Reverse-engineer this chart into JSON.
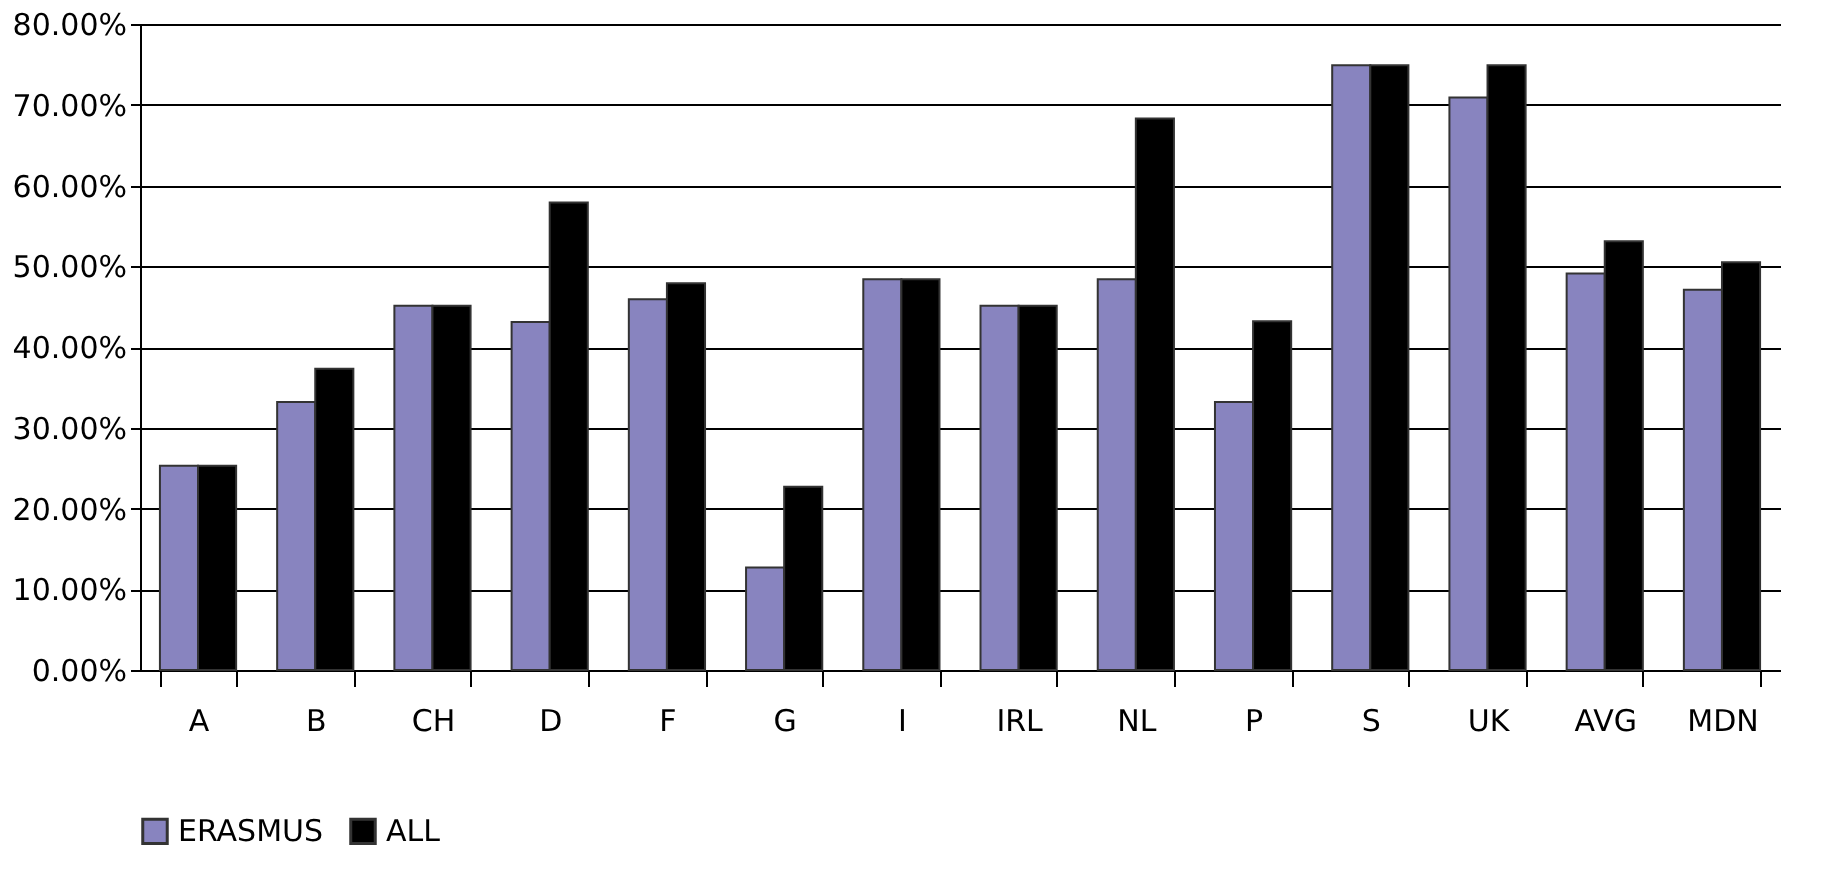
{
  "chart_data": {
    "type": "bar",
    "categories": [
      "A",
      "B",
      "CH",
      "D",
      "F",
      "G",
      "I",
      "IRL",
      "NL",
      "P",
      "S",
      "UK",
      "AVG",
      "MDN"
    ],
    "series": [
      {
        "name": "ERASMUS",
        "color": "#8884bf",
        "values": [
          25.3,
          33.2,
          45.1,
          43.1,
          45.9,
          12.7,
          48.4,
          45.1,
          48.4,
          33.2,
          74.9,
          70.9,
          49.1,
          47.1
        ]
      },
      {
        "name": "ALL",
        "color": "#000000",
        "values": [
          25.3,
          37.3,
          45.1,
          57.9,
          47.9,
          22.7,
          48.4,
          45.1,
          68.3,
          43.2,
          74.9,
          74.9,
          53.1,
          50.5
        ]
      }
    ],
    "ylim": [
      0,
      80
    ],
    "yticks": [
      {
        "value": 0,
        "label": "0.00%"
      },
      {
        "value": 10,
        "label": "10.00%"
      },
      {
        "value": 20,
        "label": "20.00%"
      },
      {
        "value": 30,
        "label": "30.00%"
      },
      {
        "value": 40,
        "label": "40.00%"
      },
      {
        "value": 50,
        "label": "50.00%"
      },
      {
        "value": 60,
        "label": "60.00%"
      },
      {
        "value": 70,
        "label": "70.00%"
      },
      {
        "value": 80,
        "label": "80.00%"
      }
    ],
    "grid": "y",
    "legend": "bottom"
  }
}
